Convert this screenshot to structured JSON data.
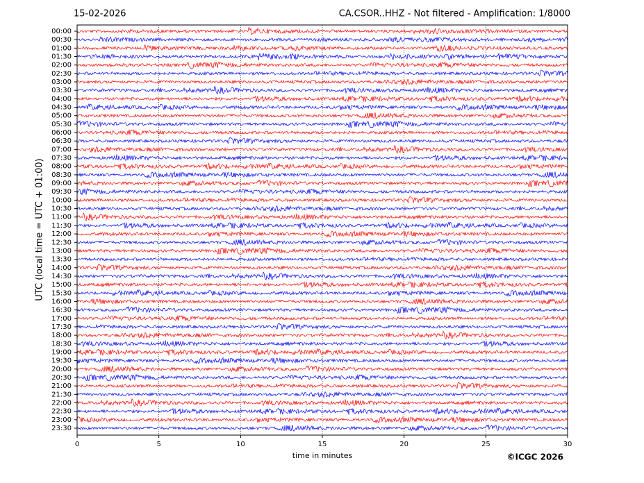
{
  "chart_data": {
    "type": "helicorder",
    "date": "15-02-2026",
    "title": "CA.CSOR..HHZ - Not filtered - Amplification: 1/8000",
    "xlabel": "time in minutes",
    "ylabel": "UTC (local time = UTC + 01:00)",
    "credit": "©ICGC 2026",
    "categories": [
      "00:00",
      "00:30",
      "01:00",
      "01:30",
      "02:00",
      "02:30",
      "03:00",
      "03:30",
      "04:00",
      "04:30",
      "05:00",
      "05:30",
      "06:00",
      "06:30",
      "07:00",
      "07:30",
      "08:00",
      "08:30",
      "09:00",
      "09:30",
      "10:00",
      "10:30",
      "11:00",
      "11:30",
      "12:00",
      "12:30",
      "13:00",
      "13:30",
      "14:00",
      "14:30",
      "15:00",
      "15:30",
      "16:00",
      "16:30",
      "17:00",
      "17:30",
      "18:00",
      "18:30",
      "19:00",
      "19:30",
      "20:00",
      "20:30",
      "21:00",
      "21:30",
      "22:00",
      "22:30",
      "23:00",
      "23:30"
    ],
    "colors": [
      "#ff0000",
      "#0000ff"
    ],
    "xlim": [
      0,
      30
    ],
    "xticks": [
      0,
      5,
      10,
      15,
      20,
      25,
      30
    ],
    "grid": true
  }
}
